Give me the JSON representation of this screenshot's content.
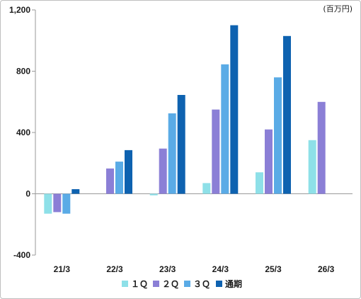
{
  "chart_data": {
    "type": "bar",
    "unit_label": "(百万円)",
    "categories": [
      "21/3",
      "22/3",
      "23/3",
      "24/3",
      "25/3",
      "26/3"
    ],
    "ylim": [
      -400,
      1200
    ],
    "yticks": [
      -400,
      0,
      400,
      800,
      1200
    ],
    "ytick_labels": [
      "-400",
      "0",
      "400",
      "800",
      "1,200"
    ],
    "series": [
      {
        "name": "１Ｑ",
        "color": "#8ee0e8",
        "values": [
          -130,
          0,
          -10,
          70,
          140,
          350
        ]
      },
      {
        "name": "２Ｑ",
        "color": "#8b7fd6",
        "values": [
          -120,
          165,
          295,
          550,
          420,
          600
        ]
      },
      {
        "name": "３Ｑ",
        "color": "#5aabe6",
        "values": [
          -130,
          210,
          525,
          845,
          760,
          null
        ]
      },
      {
        "name": "通期",
        "color": "#0e62b0",
        "values": [
          30,
          285,
          645,
          1100,
          1030,
          null
        ]
      }
    ],
    "grid": false,
    "legend_position": "bottom"
  }
}
